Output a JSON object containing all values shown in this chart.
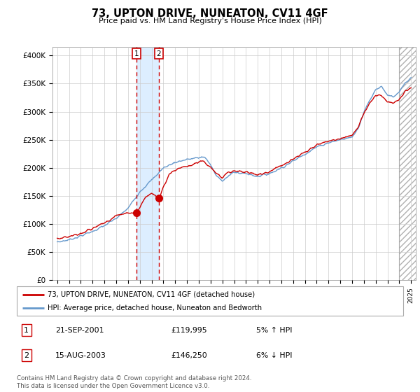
{
  "title": "73, UPTON DRIVE, NUNEATON, CV11 4GF",
  "subtitle": "Price paid vs. HM Land Registry's House Price Index (HPI)",
  "xlim_start": 1994.6,
  "xlim_end": 2025.4,
  "ylim": [
    0,
    415000
  ],
  "yticks": [
    0,
    50000,
    100000,
    150000,
    200000,
    250000,
    300000,
    350000,
    400000
  ],
  "ytick_labels": [
    "£0",
    "£50K",
    "£100K",
    "£150K",
    "£200K",
    "£250K",
    "£300K",
    "£350K",
    "£400K"
  ],
  "transactions": [
    {
      "date": "21-SEP-2001",
      "price": 119995,
      "label": "1",
      "year": 2001.72,
      "pct": "5%",
      "dir": "↑"
    },
    {
      "date": "15-AUG-2003",
      "price": 146250,
      "label": "2",
      "year": 2003.62,
      "pct": "6%",
      "dir": "↓"
    }
  ],
  "hpi_color": "#6699cc",
  "price_color": "#cc0000",
  "shade_color": "#ddeeff",
  "legend_label_price": "73, UPTON DRIVE, NUNEATON, CV11 4GF (detached house)",
  "legend_label_hpi": "HPI: Average price, detached house, Nuneaton and Bedworth",
  "footnote": "Contains HM Land Registry data © Crown copyright and database right 2024.\nThis data is licensed under the Open Government Licence v3.0.",
  "hpi_anchor_years": [
    1995.0,
    1996.0,
    1997.0,
    1998.0,
    1999.0,
    2000.0,
    2001.0,
    2002.0,
    2003.0,
    2004.0,
    2005.0,
    2006.0,
    2007.0,
    2007.5,
    2008.0,
    2008.5,
    2009.0,
    2009.5,
    2010.0,
    2011.0,
    2012.0,
    2013.0,
    2014.0,
    2015.0,
    2016.0,
    2017.0,
    2018.0,
    2019.0,
    2020.0,
    2020.5,
    2021.0,
    2021.5,
    2022.0,
    2022.5,
    2023.0,
    2023.5,
    2024.0,
    2024.5,
    2025.0
  ],
  "hpi_anchor_vals": [
    68000,
    72000,
    79000,
    87000,
    97000,
    110000,
    128000,
    158000,
    178000,
    200000,
    210000,
    215000,
    218000,
    220000,
    205000,
    185000,
    178000,
    185000,
    192000,
    190000,
    185000,
    190000,
    200000,
    212000,
    225000,
    237000,
    245000,
    250000,
    255000,
    270000,
    300000,
    320000,
    340000,
    345000,
    330000,
    325000,
    335000,
    350000,
    360000
  ],
  "price_anchor_years": [
    1995.0,
    1996.0,
    1997.0,
    1998.0,
    1999.0,
    2000.0,
    2001.0,
    2001.72,
    2002.5,
    2003.0,
    2003.62,
    2004.5,
    2005.5,
    2006.5,
    2007.0,
    2007.5,
    2008.0,
    2008.5,
    2009.0,
    2009.5,
    2010.0,
    2011.0,
    2012.0,
    2013.0,
    2014.0,
    2015.0,
    2016.0,
    2017.0,
    2018.0,
    2019.0,
    2020.0,
    2020.5,
    2021.0,
    2021.5,
    2022.0,
    2022.5,
    2023.0,
    2023.5,
    2024.0,
    2024.5,
    2025.0
  ],
  "price_anchor_vals": [
    74000,
    78000,
    84000,
    92000,
    102000,
    115000,
    119995,
    119995,
    148000,
    155000,
    146250,
    190000,
    200000,
    205000,
    210000,
    210000,
    200000,
    190000,
    182000,
    192000,
    195000,
    193000,
    188000,
    193000,
    205000,
    215000,
    228000,
    240000,
    248000,
    252000,
    258000,
    272000,
    298000,
    315000,
    328000,
    330000,
    318000,
    315000,
    322000,
    335000,
    342000
  ]
}
